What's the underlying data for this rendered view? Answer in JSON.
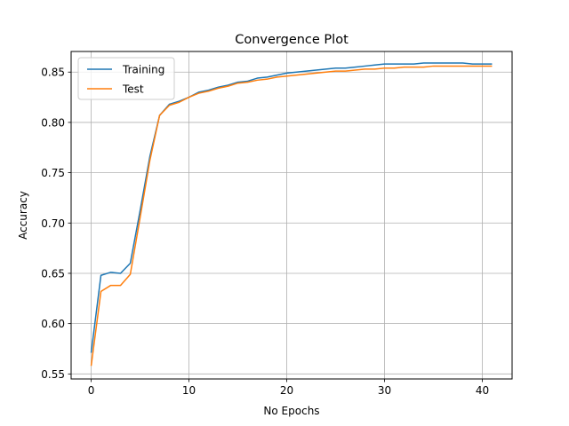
{
  "chart_data": {
    "type": "line",
    "title": "Convergence Plot",
    "xlabel": "No Epochs",
    "ylabel": "Accuracy",
    "xlim": [
      -2.05,
      43.05
    ],
    "ylim": [
      0.545,
      0.8705
    ],
    "xticks": [
      0,
      10,
      20,
      30,
      40
    ],
    "yticks": [
      0.55,
      0.6,
      0.65,
      0.7,
      0.75,
      0.8,
      0.85
    ],
    "ytick_labels": [
      "0.55",
      "0.60",
      "0.65",
      "0.70",
      "0.75",
      "0.80",
      "0.85"
    ],
    "grid": true,
    "legend_position": "upper-left",
    "x": [
      0,
      1,
      2,
      3,
      4,
      5,
      6,
      7,
      8,
      9,
      10,
      11,
      12,
      13,
      14,
      15,
      16,
      17,
      18,
      19,
      20,
      21,
      22,
      23,
      24,
      25,
      26,
      27,
      28,
      29,
      30,
      31,
      32,
      33,
      34,
      35,
      36,
      37,
      38,
      39,
      40,
      41
    ],
    "series": [
      {
        "name": "Training",
        "color": "#1f77b4",
        "values": [
          0.571,
          0.648,
          0.651,
          0.65,
          0.66,
          0.712,
          0.766,
          0.807,
          0.818,
          0.821,
          0.825,
          0.83,
          0.832,
          0.835,
          0.837,
          0.84,
          0.841,
          0.844,
          0.845,
          0.847,
          0.849,
          0.85,
          0.851,
          0.852,
          0.853,
          0.854,
          0.854,
          0.855,
          0.856,
          0.857,
          0.858,
          0.858,
          0.858,
          0.858,
          0.859,
          0.859,
          0.859,
          0.859,
          0.859,
          0.858,
          0.858,
          0.858
        ]
      },
      {
        "name": "Test",
        "color": "#ff7f0e",
        "values": [
          0.558,
          0.632,
          0.638,
          0.638,
          0.649,
          0.705,
          0.762,
          0.807,
          0.817,
          0.82,
          0.825,
          0.829,
          0.831,
          0.834,
          0.836,
          0.839,
          0.84,
          0.842,
          0.843,
          0.845,
          0.846,
          0.847,
          0.848,
          0.849,
          0.85,
          0.851,
          0.851,
          0.852,
          0.853,
          0.853,
          0.854,
          0.854,
          0.855,
          0.855,
          0.855,
          0.856,
          0.856,
          0.856,
          0.856,
          0.856,
          0.856,
          0.856
        ]
      }
    ]
  }
}
